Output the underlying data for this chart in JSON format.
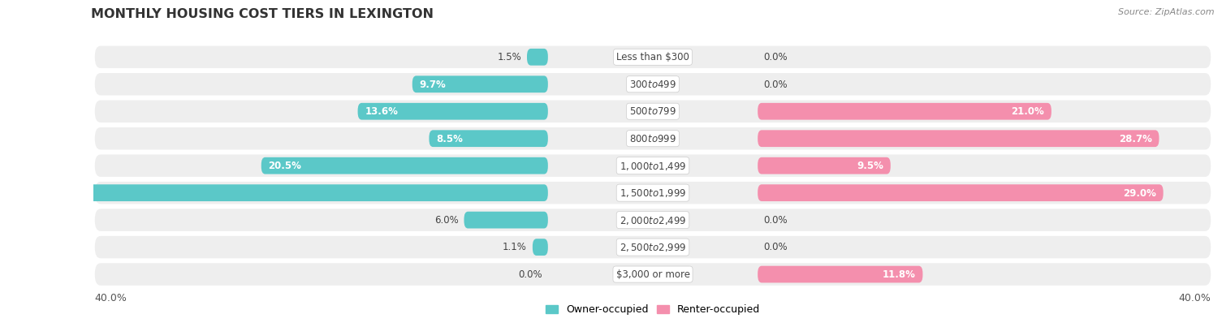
{
  "title": "MONTHLY HOUSING COST TIERS IN LEXINGTON",
  "source": "Source: ZipAtlas.com",
  "categories": [
    "Less than $300",
    "$300 to $499",
    "$500 to $799",
    "$800 to $999",
    "$1,000 to $1,499",
    "$1,500 to $1,999",
    "$2,000 to $2,499",
    "$2,500 to $2,999",
    "$3,000 or more"
  ],
  "owner_values": [
    1.5,
    9.7,
    13.6,
    8.5,
    20.5,
    39.1,
    6.0,
    1.1,
    0.0
  ],
  "renter_values": [
    0.0,
    0.0,
    21.0,
    28.7,
    9.5,
    29.0,
    0.0,
    0.0,
    11.8
  ],
  "owner_color": "#5bc8c8",
  "renter_color": "#f48fad",
  "row_bg_color": "#eeeeee",
  "max_value": 40.0,
  "title_fontsize": 11.5,
  "label_fontsize": 8.5,
  "category_fontsize": 8.5,
  "legend_fontsize": 9,
  "source_fontsize": 8,
  "background_color": "#ffffff",
  "owner_label_dark_threshold": 5.0,
  "renter_label_dark_threshold": 5.0
}
